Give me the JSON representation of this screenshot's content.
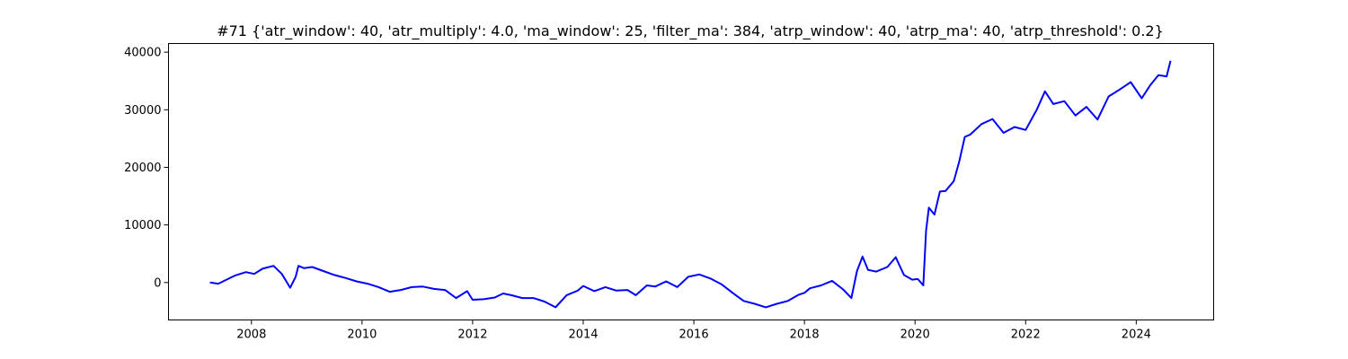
{
  "chart_data": {
    "type": "line",
    "title": "#71 {'atr_window': 40, 'atr_multiply': 4.0, 'ma_window': 25, 'filter_ma': 384, 'atrp_window': 40, 'atrp_ma': 40, 'atrp_threshold': 0.2}",
    "xlabel": "",
    "ylabel": "",
    "xlim": [
      2006.5,
      2025.4
    ],
    "ylim": [
      -6500,
      41500
    ],
    "x_ticks": [
      2008,
      2010,
      2012,
      2014,
      2016,
      2018,
      2020,
      2022,
      2024
    ],
    "y_ticks": [
      0,
      10000,
      20000,
      30000,
      40000
    ],
    "grid": false,
    "legend": "none",
    "line_color": "#0000ff",
    "series": [
      {
        "x": [
          2007.25,
          2007.4,
          2007.55,
          2007.7,
          2007.9,
          2008.05,
          2008.2,
          2008.4,
          2008.55,
          2008.7,
          2008.8,
          2008.85,
          2008.95,
          2009.1,
          2009.3,
          2009.5,
          2009.7,
          2009.9,
          2010.1,
          2010.3,
          2010.5,
          2010.7,
          2010.9,
          2011.1,
          2011.3,
          2011.5,
          2011.7,
          2011.9,
          2012.0,
          2012.2,
          2012.4,
          2012.55,
          2012.7,
          2012.9,
          2013.1,
          2013.3,
          2013.5,
          2013.7,
          2013.9,
          2014.0,
          2014.2,
          2014.4,
          2014.6,
          2014.8,
          2014.95,
          2015.15,
          2015.3,
          2015.5,
          2015.7,
          2015.9,
          2016.1,
          2016.3,
          2016.5,
          2016.7,
          2016.9,
          2017.1,
          2017.3,
          2017.5,
          2017.7,
          2017.9,
          2018.0,
          2018.1,
          2018.3,
          2018.5,
          2018.7,
          2018.85,
          2018.95,
          2019.05,
          2019.15,
          2019.3,
          2019.5,
          2019.65,
          2019.8,
          2019.95,
          2020.05,
          2020.15,
          2020.2,
          2020.25,
          2020.35,
          2020.45,
          2020.55,
          2020.7,
          2020.8,
          2020.9,
          2021.0,
          2021.2,
          2021.4,
          2021.6,
          2021.8,
          2022.0,
          2022.2,
          2022.35,
          2022.5,
          2022.7,
          2022.9,
          2023.1,
          2023.3,
          2023.5,
          2023.7,
          2023.9,
          2024.1,
          2024.25,
          2024.4,
          2024.55,
          2024.62
        ],
        "values": [
          0,
          -200,
          500,
          1200,
          1800,
          1500,
          2400,
          2900,
          1500,
          -900,
          1000,
          2900,
          2500,
          2700,
          2000,
          1300,
          800,
          200,
          -200,
          -800,
          -1600,
          -1300,
          -800,
          -700,
          -1100,
          -1300,
          -2700,
          -1500,
          -3000,
          -2900,
          -2600,
          -1900,
          -2200,
          -2700,
          -2700,
          -3300,
          -4300,
          -2200,
          -1400,
          -600,
          -1500,
          -800,
          -1400,
          -1300,
          -2200,
          -500,
          -700,
          200,
          -800,
          1000,
          1400,
          700,
          -300,
          -1800,
          -3200,
          -3700,
          -4300,
          -3700,
          -3200,
          -2100,
          -1800,
          -1000,
          -500,
          300,
          -1200,
          -2700,
          2000,
          4500,
          2200,
          1900,
          2700,
          4400,
          1300,
          500,
          600,
          -500,
          9000,
          13000,
          11800,
          15800,
          15900,
          17600,
          21000,
          25300,
          25700,
          27500,
          28400,
          26000,
          27000,
          26500,
          30000,
          33200,
          31000,
          31500,
          29000,
          30500,
          28300,
          32300,
          33500,
          34800,
          32000,
          34200,
          36000,
          35800,
          38500
        ]
      }
    ]
  }
}
